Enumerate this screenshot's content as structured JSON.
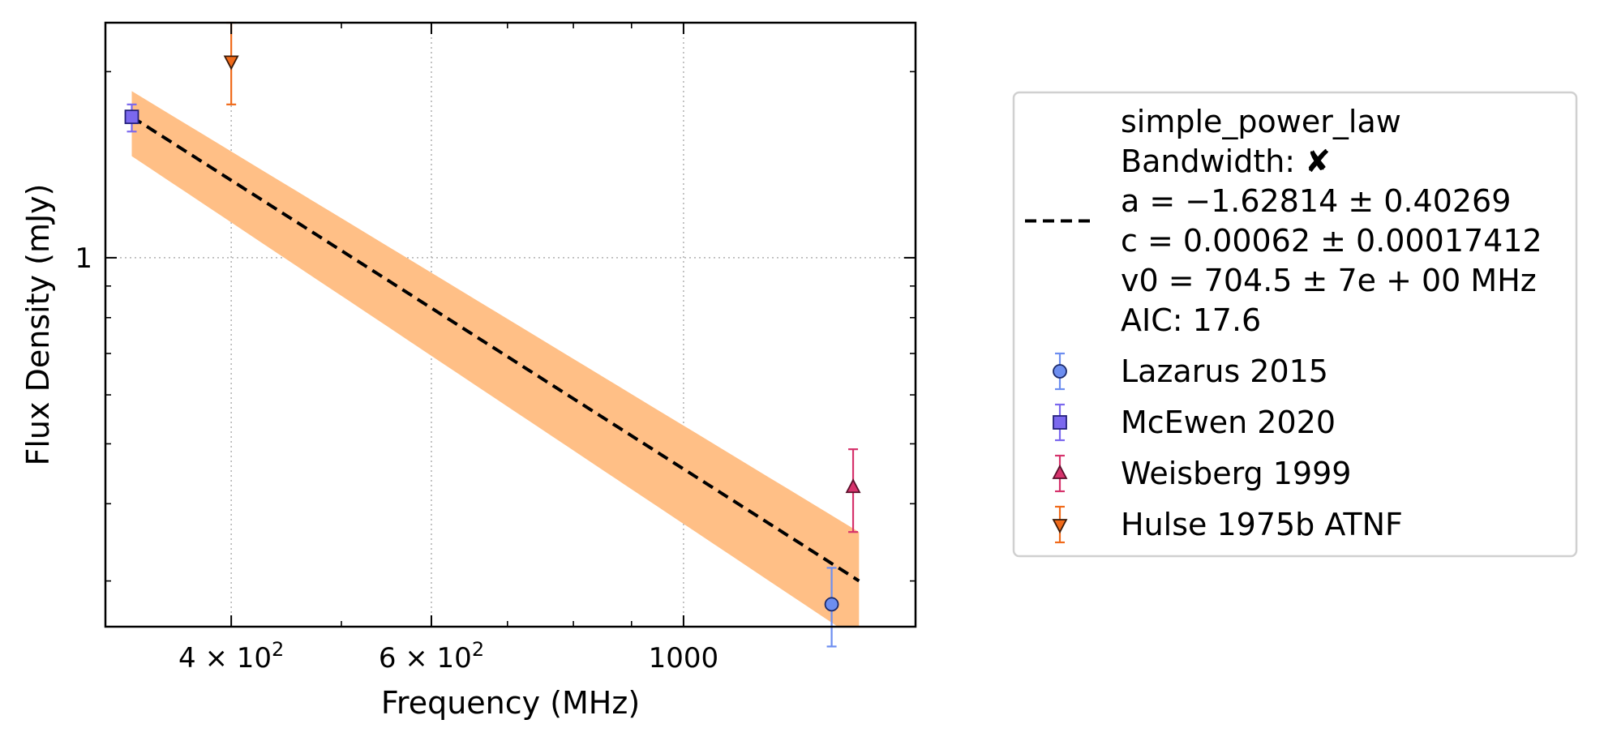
{
  "chart_data": {
    "type": "scatter",
    "xlabel": "Frequency (MHz)",
    "ylabel": "Flux Density (mJy)",
    "x_scale": "log",
    "y_scale": "log",
    "xlim": [
      310,
      1600
    ],
    "ylim": [
      0.253,
      2.4
    ],
    "grid": "major, dotted",
    "legend_position": "outside right",
    "x_ticks": [
      {
        "value": 400,
        "label": "4 × 10",
        "exp": "2"
      },
      {
        "value": 600,
        "label": "6 × 10",
        "exp": "2"
      },
      {
        "value": 1000,
        "label": "1000",
        "exp": ""
      }
    ],
    "x_minor_ticks": [
      500,
      700,
      800,
      900
    ],
    "y_ticks": [
      {
        "value": 1,
        "label": "1"
      }
    ],
    "y_minor_ticks": [
      0.3,
      0.4,
      0.5,
      0.6,
      0.7,
      0.8,
      0.9,
      2
    ],
    "fit": {
      "model": "simple_power_law",
      "legend_lines": [
        "simple_power_law",
        "Bandwidth: ✘",
        "a = −1.62814 ± 0.40269",
        "c = 0.00062 ± 0.00017412",
        "v0 = 704.5 ± 7e + 00 MHz",
        "AIC: 17.6"
      ],
      "a": -1.62814,
      "c": 0.00062,
      "v0": 704.5,
      "line": {
        "x": [
          327,
          1427
        ],
        "y": [
          1.69,
          0.3
        ]
      },
      "band_upper": {
        "x": [
          327,
          1427
        ],
        "y": [
          1.86,
          0.36
        ]
      },
      "band_lower": {
        "x": [
          327,
          1427
        ],
        "y": [
          1.46,
          0.24
        ]
      },
      "line_color": "#000000",
      "band_color": "#ffbf86"
    },
    "series": [
      {
        "name": "Lazarus 2015",
        "marker": "circle",
        "color": "#6d8ef0",
        "edge": "#1c2a6a",
        "points": [
          {
            "x": 1350,
            "y": 0.275,
            "yerr_low": 0.235,
            "yerr_high": 0.315
          }
        ]
      },
      {
        "name": "McEwen 2020",
        "marker": "square",
        "color": "#7b68ee",
        "edge": "#24207a",
        "points": [
          {
            "x": 327,
            "y": 1.69,
            "yerr_low": 1.6,
            "yerr_high": 1.77
          }
        ]
      },
      {
        "name": "Weisberg 1999",
        "marker": "triangle-up",
        "color": "#d6336c",
        "edge": "#5a0f2a",
        "points": [
          {
            "x": 1410,
            "y": 0.425,
            "yerr_low": 0.36,
            "yerr_high": 0.49
          }
        ]
      },
      {
        "name": "Hulse 1975b ATNF",
        "marker": "triangle-down",
        "color": "#f06a1a",
        "edge": "#3a1a08",
        "points": [
          {
            "x": 400,
            "y": 2.08,
            "yerr_low": 1.77,
            "yerr_high": 2.4
          }
        ]
      }
    ]
  }
}
